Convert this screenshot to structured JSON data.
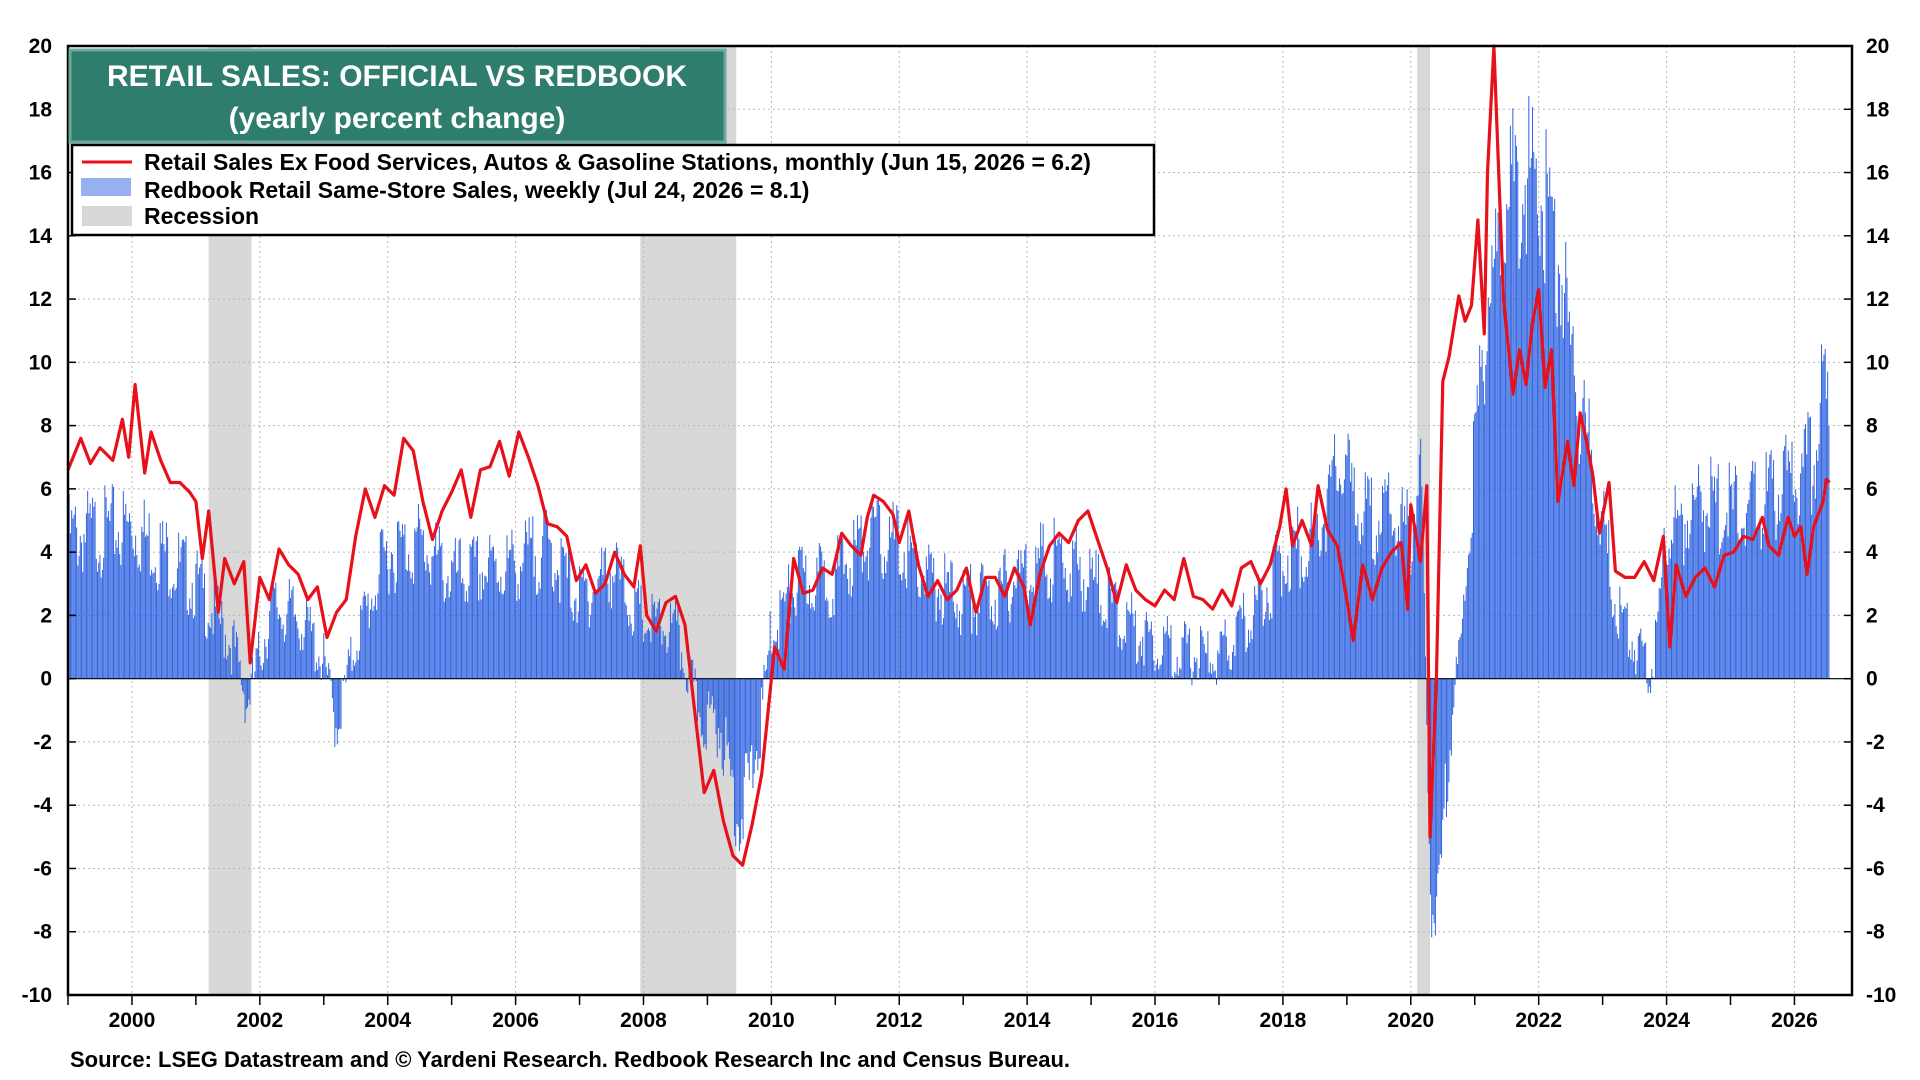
{
  "chart_data": {
    "type": "bar",
    "title": "RETAIL SALES: OFFICIAL VS REDBOOK",
    "subtitle": "(yearly percent change)",
    "source": "Source: LSEG Datastream and © Yardeni Research. Redbook Research Inc and Census Bureau.",
    "x_range": [
      1999.0,
      2026.9
    ],
    "ylim": [
      -10,
      20
    ],
    "y_ticks": [
      "20",
      "18",
      "16",
      "14",
      "12",
      "10",
      "8",
      "6",
      "4",
      "2",
      "0",
      "-2",
      "-4",
      "-6",
      "-8",
      "-10"
    ],
    "x_ticks": [
      "2000",
      "2002",
      "2004",
      "2006",
      "2008",
      "2010",
      "2012",
      "2014",
      "2016",
      "2018",
      "2020",
      "2022",
      "2024",
      "2026"
    ],
    "grid": true,
    "legend": {
      "placement": "top-left",
      "entries": [
        "Retail Sales Ex Food Services, Autos & Gasoline Stations, monthly (Jun 15, 2026 = 6.2)",
        "Redbook Retail Same-Store Sales, weekly (Jul 24, 2026 = 8.1)",
        "Recession"
      ]
    },
    "colors": {
      "official": "#e8101a",
      "redbook": "#2f63e0",
      "recession": "#d8d8d8",
      "title_bg": "#2f7d6d"
    },
    "recessions": [
      [
        2001.2,
        2001.87
      ],
      [
        2007.95,
        2009.45
      ],
      [
        2020.1,
        2020.3
      ]
    ],
    "series": [
      {
        "name": "Retail Sales Ex Food Services, Autos & Gasoline Stations, monthly (Jun 15, 2026 = 6.2)",
        "type": "line",
        "points": [
          [
            1999.0,
            6.6
          ],
          [
            1999.2,
            7.6
          ],
          [
            1999.35,
            6.8
          ],
          [
            1999.5,
            7.3
          ],
          [
            1999.7,
            6.9
          ],
          [
            1999.85,
            8.2
          ],
          [
            1999.95,
            7.0
          ],
          [
            2000.05,
            9.3
          ],
          [
            2000.2,
            6.5
          ],
          [
            2000.3,
            7.8
          ],
          [
            2000.45,
            6.9
          ],
          [
            2000.6,
            6.2
          ],
          [
            2000.75,
            6.2
          ],
          [
            2000.9,
            5.9
          ],
          [
            2001.0,
            5.6
          ],
          [
            2001.1,
            3.8
          ],
          [
            2001.2,
            5.3
          ],
          [
            2001.35,
            2.1
          ],
          [
            2001.45,
            3.8
          ],
          [
            2001.6,
            3.0
          ],
          [
            2001.75,
            3.7
          ],
          [
            2001.85,
            0.5
          ],
          [
            2002.0,
            3.2
          ],
          [
            2002.15,
            2.5
          ],
          [
            2002.3,
            4.1
          ],
          [
            2002.45,
            3.6
          ],
          [
            2002.6,
            3.3
          ],
          [
            2002.75,
            2.5
          ],
          [
            2002.9,
            2.9
          ],
          [
            2003.05,
            1.3
          ],
          [
            2003.2,
            2.1
          ],
          [
            2003.35,
            2.5
          ],
          [
            2003.5,
            4.5
          ],
          [
            2003.65,
            6.0
          ],
          [
            2003.8,
            5.1
          ],
          [
            2003.95,
            6.1
          ],
          [
            2004.1,
            5.8
          ],
          [
            2004.25,
            7.6
          ],
          [
            2004.4,
            7.2
          ],
          [
            2004.55,
            5.6
          ],
          [
            2004.7,
            4.4
          ],
          [
            2004.85,
            5.3
          ],
          [
            2005.0,
            5.9
          ],
          [
            2005.15,
            6.6
          ],
          [
            2005.3,
            5.1
          ],
          [
            2005.45,
            6.6
          ],
          [
            2005.6,
            6.7
          ],
          [
            2005.75,
            7.5
          ],
          [
            2005.9,
            6.4
          ],
          [
            2006.05,
            7.8
          ],
          [
            2006.2,
            7.0
          ],
          [
            2006.35,
            6.1
          ],
          [
            2006.5,
            4.9
          ],
          [
            2006.65,
            4.8
          ],
          [
            2006.8,
            4.5
          ],
          [
            2006.95,
            3.1
          ],
          [
            2007.1,
            3.6
          ],
          [
            2007.25,
            2.7
          ],
          [
            2007.4,
            3.0
          ],
          [
            2007.55,
            4.0
          ],
          [
            2007.7,
            3.3
          ],
          [
            2007.85,
            2.9
          ],
          [
            2007.95,
            4.2
          ],
          [
            2008.05,
            2.0
          ],
          [
            2008.2,
            1.5
          ],
          [
            2008.35,
            2.4
          ],
          [
            2008.5,
            2.6
          ],
          [
            2008.65,
            1.7
          ],
          [
            2008.8,
            -1.0
          ],
          [
            2008.95,
            -3.6
          ],
          [
            2009.1,
            -2.9
          ],
          [
            2009.25,
            -4.5
          ],
          [
            2009.4,
            -5.6
          ],
          [
            2009.55,
            -5.9
          ],
          [
            2009.7,
            -4.6
          ],
          [
            2009.85,
            -3.0
          ],
          [
            2009.95,
            -1.0
          ],
          [
            2010.05,
            1.0
          ],
          [
            2010.2,
            0.3
          ],
          [
            2010.35,
            3.8
          ],
          [
            2010.5,
            2.7
          ],
          [
            2010.65,
            2.8
          ],
          [
            2010.8,
            3.5
          ],
          [
            2010.95,
            3.3
          ],
          [
            2011.1,
            4.6
          ],
          [
            2011.25,
            4.2
          ],
          [
            2011.4,
            3.9
          ],
          [
            2011.5,
            5.1
          ],
          [
            2011.6,
            5.8
          ],
          [
            2011.75,
            5.6
          ],
          [
            2011.9,
            5.2
          ],
          [
            2012.0,
            4.3
          ],
          [
            2012.15,
            5.3
          ],
          [
            2012.3,
            3.6
          ],
          [
            2012.45,
            2.6
          ],
          [
            2012.6,
            3.1
          ],
          [
            2012.75,
            2.5
          ],
          [
            2012.9,
            2.8
          ],
          [
            2013.05,
            3.5
          ],
          [
            2013.2,
            2.1
          ],
          [
            2013.35,
            3.2
          ],
          [
            2013.5,
            3.2
          ],
          [
            2013.65,
            2.6
          ],
          [
            2013.8,
            3.5
          ],
          [
            2013.95,
            2.9
          ],
          [
            2014.05,
            1.7
          ],
          [
            2014.2,
            3.3
          ],
          [
            2014.35,
            4.2
          ],
          [
            2014.5,
            4.6
          ],
          [
            2014.65,
            4.3
          ],
          [
            2014.8,
            5.0
          ],
          [
            2014.95,
            5.3
          ],
          [
            2015.1,
            4.4
          ],
          [
            2015.25,
            3.5
          ],
          [
            2015.4,
            2.4
          ],
          [
            2015.55,
            3.6
          ],
          [
            2015.7,
            2.8
          ],
          [
            2015.85,
            2.5
          ],
          [
            2016.0,
            2.3
          ],
          [
            2016.15,
            2.8
          ],
          [
            2016.3,
            2.5
          ],
          [
            2016.45,
            3.8
          ],
          [
            2016.6,
            2.6
          ],
          [
            2016.75,
            2.5
          ],
          [
            2016.9,
            2.2
          ],
          [
            2017.05,
            2.8
          ],
          [
            2017.2,
            2.3
          ],
          [
            2017.35,
            3.5
          ],
          [
            2017.5,
            3.7
          ],
          [
            2017.65,
            3.0
          ],
          [
            2017.8,
            3.6
          ],
          [
            2017.95,
            4.8
          ],
          [
            2018.05,
            6.0
          ],
          [
            2018.15,
            4.2
          ],
          [
            2018.3,
            5.0
          ],
          [
            2018.45,
            4.2
          ],
          [
            2018.55,
            6.1
          ],
          [
            2018.7,
            4.7
          ],
          [
            2018.85,
            4.2
          ],
          [
            2019.0,
            2.5
          ],
          [
            2019.1,
            1.2
          ],
          [
            2019.25,
            3.6
          ],
          [
            2019.4,
            2.5
          ],
          [
            2019.55,
            3.5
          ],
          [
            2019.7,
            4.0
          ],
          [
            2019.85,
            4.3
          ],
          [
            2019.95,
            2.2
          ],
          [
            2020.0,
            5.5
          ],
          [
            2020.15,
            3.7
          ],
          [
            2020.25,
            6.1
          ],
          [
            2020.3,
            -5.0
          ],
          [
            2020.4,
            0.0
          ],
          [
            2020.5,
            9.4
          ],
          [
            2020.6,
            10.2
          ],
          [
            2020.75,
            12.1
          ],
          [
            2020.85,
            11.3
          ],
          [
            2020.95,
            11.8
          ],
          [
            2021.05,
            14.5
          ],
          [
            2021.15,
            10.9
          ],
          [
            2021.2,
            16.0
          ],
          [
            2021.3,
            20.0
          ],
          [
            2021.45,
            12.0
          ],
          [
            2021.6,
            9.0
          ],
          [
            2021.7,
            10.4
          ],
          [
            2021.8,
            9.3
          ],
          [
            2021.9,
            11.2
          ],
          [
            2022.0,
            12.3
          ],
          [
            2022.1,
            9.2
          ],
          [
            2022.2,
            10.4
          ],
          [
            2022.3,
            5.6
          ],
          [
            2022.45,
            7.5
          ],
          [
            2022.55,
            6.1
          ],
          [
            2022.65,
            8.4
          ],
          [
            2022.75,
            7.5
          ],
          [
            2022.85,
            6.4
          ],
          [
            2022.95,
            4.6
          ],
          [
            2023.1,
            6.2
          ],
          [
            2023.2,
            3.4
          ],
          [
            2023.35,
            3.2
          ],
          [
            2023.5,
            3.2
          ],
          [
            2023.65,
            3.7
          ],
          [
            2023.8,
            3.1
          ],
          [
            2023.95,
            4.5
          ],
          [
            2024.05,
            1.0
          ],
          [
            2024.15,
            3.6
          ],
          [
            2024.3,
            2.6
          ],
          [
            2024.45,
            3.2
          ],
          [
            2024.6,
            3.5
          ],
          [
            2024.75,
            2.9
          ],
          [
            2024.9,
            3.9
          ],
          [
            2025.05,
            4.0
          ],
          [
            2025.2,
            4.5
          ],
          [
            2025.35,
            4.4
          ],
          [
            2025.5,
            5.1
          ],
          [
            2025.6,
            4.2
          ],
          [
            2025.75,
            3.9
          ],
          [
            2025.9,
            5.1
          ],
          [
            2026.0,
            4.5
          ],
          [
            2026.1,
            4.8
          ],
          [
            2026.2,
            3.3
          ],
          [
            2026.3,
            4.8
          ],
          [
            2026.45,
            5.6
          ],
          [
            2026.5,
            6.3
          ],
          [
            2026.55,
            6.2
          ]
        ]
      },
      {
        "name": "Redbook Retail Same-Store Sales, weekly (Jul 24, 2026 = 8.1)",
        "type": "bar",
        "points": [
          [
            1999.0,
            4.5
          ],
          [
            2000.0,
            4.8
          ],
          [
            2000.5,
            4.0
          ],
          [
            2001.0,
            3.0
          ],
          [
            2001.6,
            1.0
          ],
          [
            2001.8,
            -0.8
          ],
          [
            2002.2,
            2.3
          ],
          [
            2002.7,
            1.8
          ],
          [
            2003.0,
            0.5
          ],
          [
            2003.2,
            -1.5
          ],
          [
            2003.5,
            1.2
          ],
          [
            2004.0,
            4.0
          ],
          [
            2004.5,
            4.3
          ],
          [
            2005.0,
            3.2
          ],
          [
            2005.5,
            3.4
          ],
          [
            2006.0,
            3.6
          ],
          [
            2006.5,
            4.2
          ],
          [
            2007.0,
            2.5
          ],
          [
            2007.5,
            3.5
          ],
          [
            2008.0,
            1.8
          ],
          [
            2008.5,
            1.5
          ],
          [
            2008.9,
            -1.2
          ],
          [
            2009.2,
            -1.5
          ],
          [
            2009.5,
            -4.5
          ],
          [
            2009.8,
            -2.0
          ],
          [
            2010.0,
            1.5
          ],
          [
            2010.4,
            3.0
          ],
          [
            2011.0,
            3.2
          ],
          [
            2011.5,
            4.5
          ],
          [
            2012.0,
            4.2
          ],
          [
            2012.5,
            3.0
          ],
          [
            2013.0,
            2.5
          ],
          [
            2013.5,
            2.6
          ],
          [
            2014.0,
            3.5
          ],
          [
            2014.5,
            3.8
          ],
          [
            2015.0,
            3.2
          ],
          [
            2015.5,
            1.8
          ],
          [
            2016.0,
            1.2
          ],
          [
            2016.5,
            0.8
          ],
          [
            2017.0,
            0.6
          ],
          [
            2017.5,
            2.0
          ],
          [
            2018.0,
            3.8
          ],
          [
            2018.5,
            4.5
          ],
          [
            2018.9,
            6.8
          ],
          [
            2019.3,
            5.0
          ],
          [
            2019.7,
            5.2
          ],
          [
            2020.0,
            4.5
          ],
          [
            2020.15,
            7.0
          ],
          [
            2020.3,
            -6.0
          ],
          [
            2020.4,
            -8.5
          ],
          [
            2020.6,
            -2.0
          ],
          [
            2020.8,
            1.5
          ],
          [
            2021.0,
            7.0
          ],
          [
            2021.2,
            12.0
          ],
          [
            2021.5,
            15.0
          ],
          [
            2021.8,
            16.0
          ],
          [
            2022.0,
            15.5
          ],
          [
            2022.3,
            13.5
          ],
          [
            2022.6,
            9.0
          ],
          [
            2022.9,
            6.0
          ],
          [
            2023.2,
            2.5
          ],
          [
            2023.5,
            1.0
          ],
          [
            2023.8,
            0.3
          ],
          [
            2024.0,
            4.5
          ],
          [
            2024.5,
            5.6
          ],
          [
            2025.0,
            5.3
          ],
          [
            2025.5,
            5.6
          ],
          [
            2026.0,
            6.3
          ],
          [
            2026.3,
            6.9
          ],
          [
            2026.45,
            9.5
          ],
          [
            2026.55,
            8.1
          ]
        ]
      }
    ]
  }
}
